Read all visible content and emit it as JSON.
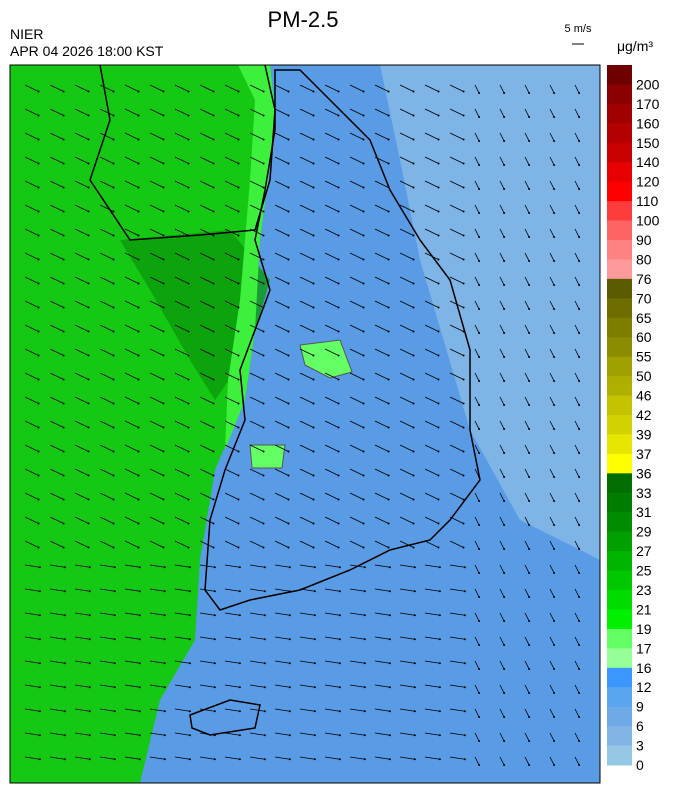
{
  "header": {
    "title": "PM-2.5",
    "source": "NIER",
    "datetime": "APR 04 2026 18:00 KST",
    "wind_scale": "5 m/s"
  },
  "legend": {
    "unit": "μg/m³",
    "levels": [
      {
        "label": "200",
        "color": "#6e0000"
      },
      {
        "label": "170",
        "color": "#8b0000"
      },
      {
        "label": "160",
        "color": "#a00000"
      },
      {
        "label": "150",
        "color": "#b40000"
      },
      {
        "label": "140",
        "color": "#c80000"
      },
      {
        "label": "120",
        "color": "#e60000"
      },
      {
        "label": "110",
        "color": "#ff0000"
      },
      {
        "label": "100",
        "color": "#ff3c3c"
      },
      {
        "label": "90",
        "color": "#ff6464"
      },
      {
        "label": "80",
        "color": "#ff8282"
      },
      {
        "label": "76",
        "color": "#ff9a9a"
      },
      {
        "label": "70",
        "color": "#5a5a00"
      },
      {
        "label": "65",
        "color": "#6e6e00"
      },
      {
        "label": "60",
        "color": "#7d7d00"
      },
      {
        "label": "55",
        "color": "#8c8c00"
      },
      {
        "label": "50",
        "color": "#a0a000"
      },
      {
        "label": "46",
        "color": "#afaf00"
      },
      {
        "label": "42",
        "color": "#c3c300"
      },
      {
        "label": "39",
        "color": "#d2d200"
      },
      {
        "label": "37",
        "color": "#e6e600"
      },
      {
        "label": "36",
        "color": "#ffff00"
      },
      {
        "label": "33",
        "color": "#006e00"
      },
      {
        "label": "31",
        "color": "#007d00"
      },
      {
        "label": "29",
        "color": "#008c00"
      },
      {
        "label": "27",
        "color": "#00a000"
      },
      {
        "label": "25",
        "color": "#00b400"
      },
      {
        "label": "23",
        "color": "#00c800"
      },
      {
        "label": "21",
        "color": "#00dc00"
      },
      {
        "label": "19",
        "color": "#00f000"
      },
      {
        "label": "17",
        "color": "#64ff64"
      },
      {
        "label": "16",
        "color": "#96ff96"
      },
      {
        "label": "12",
        "color": "#3c96ff"
      },
      {
        "label": "9",
        "color": "#5aa5f0"
      },
      {
        "label": "6",
        "color": "#6eaae6"
      },
      {
        "label": "3",
        "color": "#82b4e6"
      },
      {
        "label": "0",
        "color": "#96c8e6"
      }
    ]
  }
}
